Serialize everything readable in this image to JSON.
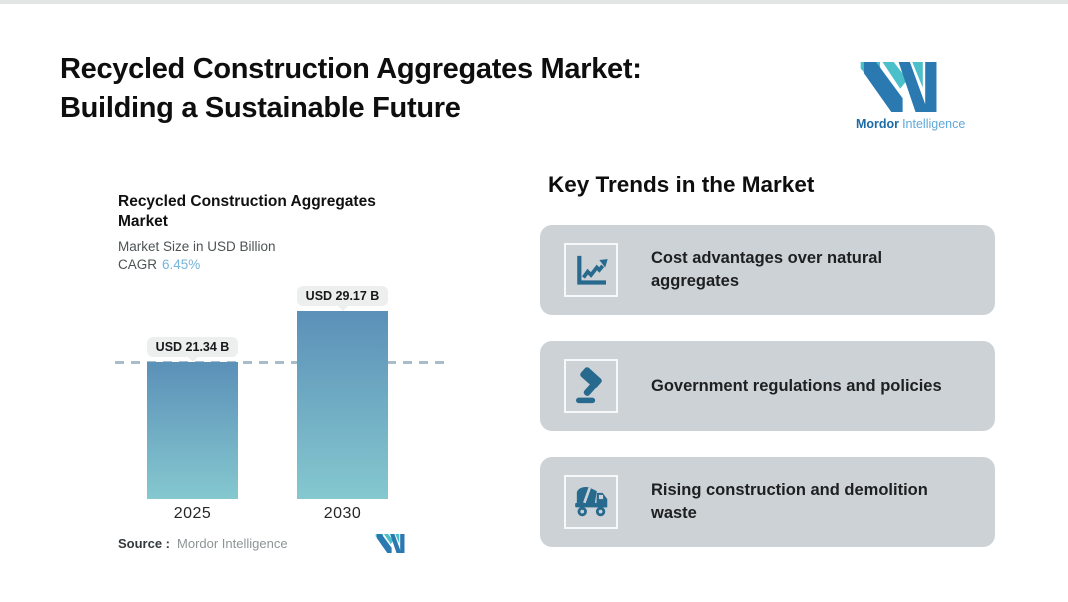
{
  "header": {
    "title_line1": "Recycled Construction Aggregates Market:",
    "title_line2": "Building a Sustainable Future"
  },
  "brand": {
    "name_bold": "Mordor",
    "name_light": "Intelligence",
    "teal": "#4bc0cb",
    "blue": "#2b79b1"
  },
  "chart": {
    "title_line1": "Recycled Construction Aggregates",
    "title_line2": "Market",
    "subtitle": "Market Size in USD Billion",
    "cagr_label": "CAGR",
    "cagr_value": "6.45%",
    "source_label": "Source :",
    "source_value": "Mordor Intelligence"
  },
  "chart_data": {
    "type": "bar",
    "title": "Recycled Construction Aggregates Market",
    "subtitle": "Market Size in USD Billion",
    "cagr": "6.45%",
    "categories": [
      "2025",
      "2030"
    ],
    "values": [
      21.34,
      29.17
    ],
    "value_labels": [
      "USD 21.34 B",
      "USD 29.17 B"
    ],
    "ylim": [
      0,
      29.17
    ],
    "dashed_reference_value": 21.34,
    "grid": false,
    "legend": "none",
    "bar_gradient_top": "#5b90b8",
    "bar_gradient_bottom": "#85c8cf",
    "dash_color": "#a7bec9",
    "label_pill_bg": "#edefee"
  },
  "trends": {
    "heading": "Key Trends in the Market",
    "card_bg": "#cdd2d6",
    "icon_color": "#28698e",
    "items": [
      {
        "icon": "line-chart-icon",
        "text": "Cost advantages over natural aggregates"
      },
      {
        "icon": "gavel-icon",
        "text": "Government regulations and policies"
      },
      {
        "icon": "mixer-truck-icon",
        "text": "Rising construction and demolition waste"
      }
    ]
  }
}
